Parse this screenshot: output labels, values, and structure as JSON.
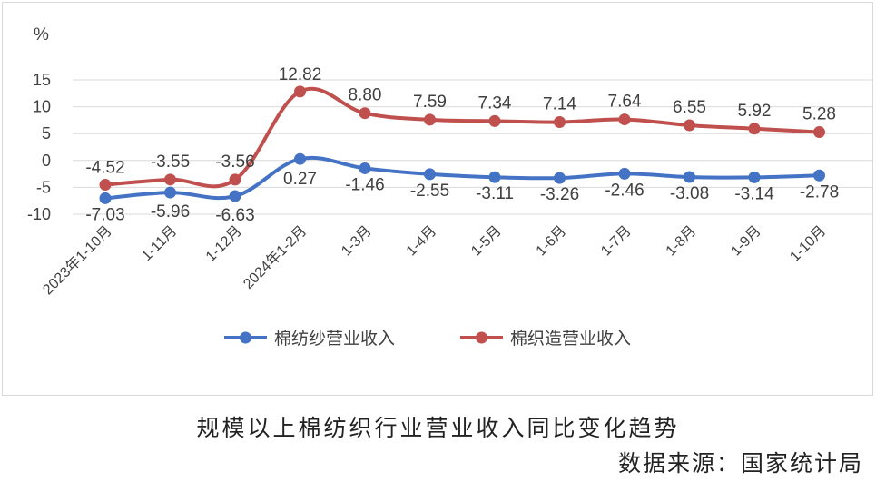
{
  "chart_data": {
    "type": "line",
    "y_unit": "%",
    "ylim": [
      -10,
      15
    ],
    "y_ticks": [
      15,
      10,
      5,
      0,
      -5,
      -10
    ],
    "grid": true,
    "legend_position": "bottom",
    "categories": [
      "2023年1-10月",
      "1-11月",
      "1-12月",
      "2024年1-2月",
      "1-3月",
      "1-4月",
      "1-5月",
      "1-6月",
      "1-7月",
      "1-8月",
      "1-9月",
      "1-10月"
    ],
    "series": [
      {
        "name": "棉纺纱营业收入",
        "color": "#4472c4",
        "values": [
          -7.03,
          -5.96,
          -6.63,
          0.27,
          -1.46,
          -2.55,
          -3.11,
          -3.26,
          -2.46,
          -3.08,
          -3.14,
          -2.78
        ],
        "labels": [
          "-7.03",
          "-5.96",
          "-6.63",
          "0.27",
          "-1.46",
          "-2.55",
          "-3.11",
          "-3.26",
          "-2.46",
          "-3.08",
          "-3.14",
          "-2.78"
        ]
      },
      {
        "name": "棉织造营业收入",
        "color": "#c0504d",
        "values": [
          -4.52,
          -3.55,
          -3.56,
          12.82,
          8.8,
          7.59,
          7.34,
          7.14,
          7.64,
          6.55,
          5.92,
          5.28
        ],
        "labels": [
          "-4.52",
          "-3.55",
          "-3.56",
          "12.82",
          "8.80",
          "7.59",
          "7.34",
          "7.14",
          "7.64",
          "6.55",
          "5.92",
          "5.28"
        ]
      }
    ]
  },
  "caption": {
    "title": "规模以上棉纺织行业营业收入同比变化趋势",
    "source": "数据来源：国家统计局"
  }
}
